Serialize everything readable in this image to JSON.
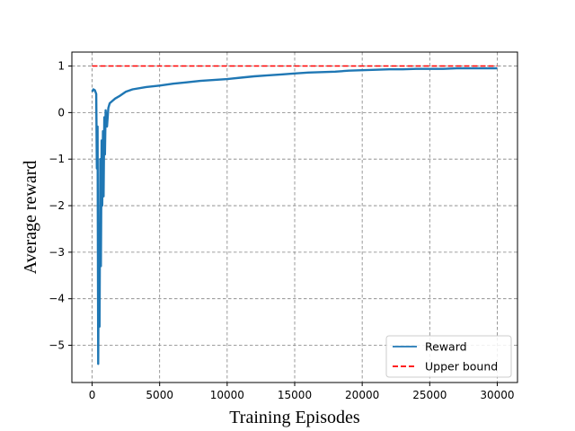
{
  "chart_data": {
    "type": "line",
    "title": "",
    "xlabel": "Training Episodes",
    "ylabel": "Average reward",
    "xlim": [
      -1500,
      31500
    ],
    "ylim": [
      -5.8,
      1.3
    ],
    "x_ticks": [
      0,
      5000,
      10000,
      15000,
      20000,
      25000,
      30000
    ],
    "x_tick_labels": [
      "0",
      "5000",
      "10000",
      "15000",
      "20000",
      "25000",
      "30000"
    ],
    "y_ticks": [
      1,
      0,
      -1,
      -2,
      -3,
      -4,
      -5
    ],
    "y_tick_labels": [
      "1",
      "0",
      "−1",
      "−2",
      "−3",
      "−4",
      "−5"
    ],
    "grid": true,
    "grid_style": "dashed",
    "legend_position": "bottom-right",
    "series": [
      {
        "name": "Reward",
        "color": "#1f77b4",
        "style": "solid",
        "x": [
          0,
          100,
          200,
          300,
          350,
          400,
          450,
          500,
          550,
          600,
          650,
          700,
          750,
          800,
          850,
          900,
          950,
          1000,
          1100,
          1200,
          1300,
          1500,
          1700,
          2000,
          2500,
          3000,
          4000,
          5000,
          6000,
          7000,
          8000,
          9000,
          10000,
          11000,
          12000,
          13000,
          14000,
          15000,
          16000,
          17000,
          18000,
          19000,
          20000,
          21000,
          22000,
          23000,
          24000,
          25000,
          26000,
          27000,
          28000,
          29000,
          30000
        ],
        "y": [
          0.45,
          0.5,
          0.48,
          0.4,
          -1.2,
          -0.3,
          -5.4,
          -2.5,
          -4.6,
          -1.0,
          -3.3,
          -0.6,
          -2.0,
          -0.4,
          -1.8,
          -0.1,
          -0.9,
          0.05,
          -0.3,
          0.1,
          0.2,
          0.25,
          0.3,
          0.35,
          0.45,
          0.5,
          0.55,
          0.58,
          0.62,
          0.65,
          0.68,
          0.7,
          0.72,
          0.75,
          0.78,
          0.8,
          0.82,
          0.84,
          0.86,
          0.87,
          0.88,
          0.9,
          0.91,
          0.92,
          0.93,
          0.93,
          0.94,
          0.94,
          0.94,
          0.95,
          0.95,
          0.95,
          0.95
        ]
      },
      {
        "name": "Upper bound",
        "color": "#ff0000",
        "style": "dashed",
        "x": [
          0,
          30000
        ],
        "y": [
          1.0,
          1.0
        ]
      }
    ]
  }
}
